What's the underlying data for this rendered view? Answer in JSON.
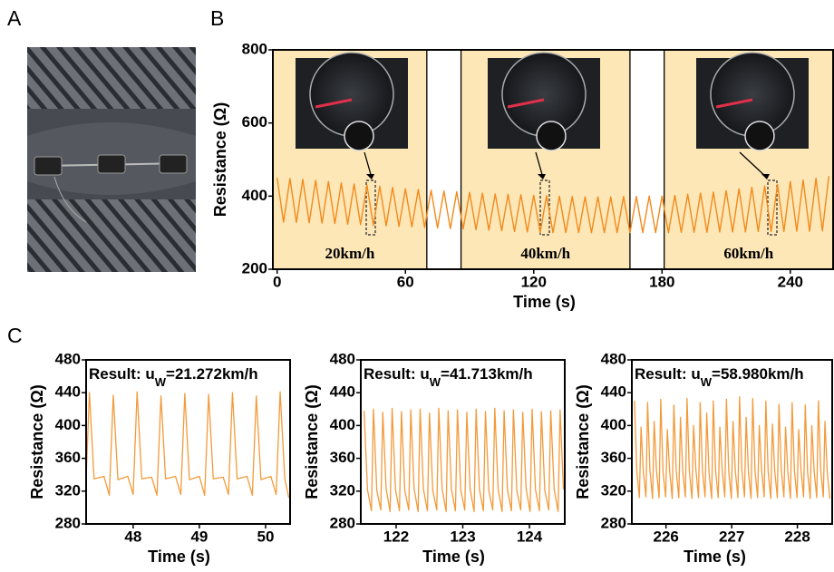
{
  "panel_labels": [
    "A",
    "B",
    "C"
  ],
  "chart_data": [
    {
      "type": "line",
      "xlabel": "Time (s)",
      "ylabel": "Resistance (Ω)",
      "xlim": [
        -2,
        260
      ],
      "ylim": [
        200,
        800
      ],
      "xticks": [
        0,
        60,
        120,
        180,
        240
      ],
      "yticks": [
        200,
        400,
        600,
        800
      ],
      "highlight_spans": [
        [
          -2,
          70
        ],
        [
          86,
          165
        ],
        [
          181,
          260
        ]
      ],
      "annotations": [
        "20km/h",
        "40km/h",
        "60km/h"
      ],
      "color": "#f28a1c",
      "x": [
        0,
        3,
        6,
        9,
        12,
        15,
        18,
        21,
        24,
        27,
        30,
        33,
        36,
        39,
        42,
        45,
        48,
        51,
        54,
        57,
        60,
        63,
        66,
        69,
        72,
        75,
        78,
        81,
        84,
        87,
        90,
        93,
        96,
        99,
        102,
        105,
        108,
        111,
        114,
        117,
        120,
        123,
        126,
        129,
        132,
        135,
        138,
        141,
        144,
        147,
        150,
        153,
        156,
        159,
        162,
        165,
        168,
        171,
        174,
        177,
        180,
        183,
        186,
        189,
        192,
        195,
        198,
        201,
        204,
        207,
        210,
        213,
        216,
        219,
        222,
        225,
        228,
        231,
        234,
        237,
        240,
        243,
        246,
        249,
        252,
        255,
        258
      ],
      "values": [
        450,
        329,
        448,
        328,
        446,
        327,
        443,
        326,
        440,
        325,
        436,
        323,
        433,
        322,
        430,
        320,
        427,
        319,
        424,
        317,
        420,
        316,
        418,
        314,
        416,
        313,
        414,
        311,
        412,
        310,
        410,
        308,
        408,
        307,
        406,
        305,
        405,
        303,
        404,
        302,
        402,
        300,
        401,
        300,
        400,
        300,
        399,
        300,
        398,
        300,
        398,
        300,
        398,
        300,
        399,
        300,
        399,
        300,
        400,
        300,
        400,
        300,
        402,
        301,
        405,
        301,
        408,
        301,
        411,
        302,
        415,
        302,
        420,
        302,
        424,
        303,
        428,
        303,
        432,
        303,
        440,
        304,
        444,
        304,
        449,
        305,
        455
      ]
    },
    {
      "type": "line",
      "xlabel": "Time (s)",
      "ylabel": "Resistance (Ω)",
      "xlim": [
        47.29,
        50.37
      ],
      "ylim": [
        280,
        480
      ],
      "xticks": [
        48,
        49,
        50
      ],
      "yticks": [
        280,
        320,
        360,
        400,
        440,
        480
      ],
      "annotation": [
        "Result: u",
        "W",
        "=21.272km/h"
      ],
      "color": "#f39a3a",
      "x": [
        47.29,
        47.34,
        47.41,
        47.56,
        47.64,
        47.7,
        47.77,
        47.92,
        48.0,
        48.06,
        48.13,
        48.28,
        48.36,
        48.42,
        48.49,
        48.64,
        48.72,
        48.78,
        48.85,
        49.0,
        49.08,
        49.14,
        49.21,
        49.36,
        49.44,
        49.5,
        49.57,
        49.72,
        49.8,
        49.86,
        49.93,
        50.08,
        50.16,
        50.22,
        50.29,
        50.35
      ],
      "values": [
        335,
        440,
        335,
        338,
        315,
        437,
        334,
        338,
        316,
        441,
        335,
        337,
        315,
        436,
        335,
        338,
        316,
        439,
        334,
        338,
        315,
        438,
        335,
        337,
        316,
        440,
        335,
        338,
        315,
        436,
        334,
        338,
        316,
        441,
        335,
        312
      ]
    },
    {
      "type": "line",
      "xlabel": "Time (s)",
      "ylabel": "Resistance (Ω)",
      "xlim": [
        121.47,
        124.53
      ],
      "ylim": [
        280,
        480
      ],
      "xticks": [
        122,
        123,
        124
      ],
      "yticks": [
        280,
        320,
        360,
        400,
        440,
        480
      ],
      "annotation": [
        "Result: u",
        "W",
        "=41.713km/h"
      ],
      "color": "#f39a3a",
      "x": [
        121.52,
        121.57,
        121.63,
        121.66,
        121.71,
        121.77,
        121.8,
        121.85,
        121.91,
        121.94,
        121.99,
        122.05,
        122.08,
        122.13,
        122.19,
        122.22,
        122.27,
        122.33,
        122.36,
        122.41,
        122.47,
        122.5,
        122.55,
        122.61,
        122.64,
        122.69,
        122.75,
        122.78,
        122.83,
        122.89,
        122.92,
        122.97,
        123.03,
        123.06,
        123.11,
        123.17,
        123.2,
        123.25,
        123.31,
        123.34,
        123.39,
        123.45,
        123.48,
        123.53,
        123.59,
        123.62,
        123.67,
        123.73,
        123.76,
        123.81,
        123.87,
        123.9,
        123.95,
        124.01,
        124.04,
        124.09,
        124.15,
        124.18,
        124.23,
        124.29,
        124.32,
        124.37,
        124.43,
        124.46,
        124.51
      ],
      "values": [
        418,
        322,
        296,
        420,
        321,
        297,
        416,
        323,
        295,
        421,
        322,
        296,
        417,
        321,
        297,
        419,
        323,
        295,
        420,
        322,
        296,
        415,
        321,
        297,
        421,
        323,
        295,
        418,
        322,
        296,
        419,
        321,
        297,
        416,
        323,
        295,
        420,
        322,
        296,
        417,
        321,
        297,
        421,
        323,
        295,
        418,
        322,
        296,
        419,
        321,
        297,
        416,
        323,
        295,
        420,
        322,
        296,
        417,
        321,
        297,
        418,
        323,
        295,
        419,
        322
      ]
    },
    {
      "type": "line",
      "xlabel": "Time (s)",
      "ylabel": "Resistance (Ω)",
      "xlim": [
        225.48,
        228.53
      ],
      "ylim": [
        280,
        480
      ],
      "xticks": [
        226,
        227,
        228
      ],
      "yticks": [
        280,
        320,
        360,
        400,
        440,
        480
      ],
      "annotation": [
        "Result: u",
        "W",
        "=58.980km/h"
      ],
      "color": "#f39a3a",
      "x": [
        225.52,
        225.555,
        225.595,
        225.62,
        225.655,
        225.695,
        225.72,
        225.755,
        225.795,
        225.82,
        225.855,
        225.895,
        225.92,
        225.955,
        225.995,
        226.02,
        226.055,
        226.095,
        226.12,
        226.155,
        226.195,
        226.22,
        226.255,
        226.295,
        226.32,
        226.355,
        226.395,
        226.42,
        226.455,
        226.495,
        226.52,
        226.555,
        226.595,
        226.62,
        226.655,
        226.695,
        226.72,
        226.755,
        226.795,
        226.82,
        226.855,
        226.895,
        226.92,
        226.955,
        226.995,
        227.02,
        227.055,
        227.095,
        227.12,
        227.155,
        227.195,
        227.22,
        227.255,
        227.295,
        227.32,
        227.355,
        227.395,
        227.42,
        227.455,
        227.495,
        227.52,
        227.555,
        227.595,
        227.62,
        227.655,
        227.695,
        227.72,
        227.755,
        227.795,
        227.82,
        227.855,
        227.895,
        227.92,
        227.955,
        227.995,
        228.02,
        228.055,
        228.095,
        228.12,
        228.155,
        228.195,
        228.22,
        228.255,
        228.295,
        228.32,
        228.355,
        228.395,
        228.42,
        228.455,
        228.495
      ],
      "values": [
        430,
        345,
        312,
        398,
        344,
        313,
        428,
        346,
        311,
        405,
        345,
        312,
        432,
        343,
        313,
        395,
        345,
        311,
        425,
        346,
        312,
        410,
        344,
        313,
        433,
        345,
        311,
        400,
        346,
        312,
        428,
        345,
        313,
        415,
        343,
        311,
        430,
        345,
        312,
        398,
        346,
        313,
        432,
        344,
        311,
        405,
        345,
        312,
        435,
        346,
        313,
        410,
        343,
        311,
        433,
        345,
        312,
        400,
        346,
        313,
        430,
        344,
        311,
        402,
        345,
        312,
        426,
        346,
        313,
        398,
        343,
        311,
        428,
        345,
        312,
        395,
        346,
        313,
        425,
        344,
        311,
        400,
        345,
        312,
        430,
        346,
        313,
        405,
        343,
        311
      ]
    }
  ]
}
